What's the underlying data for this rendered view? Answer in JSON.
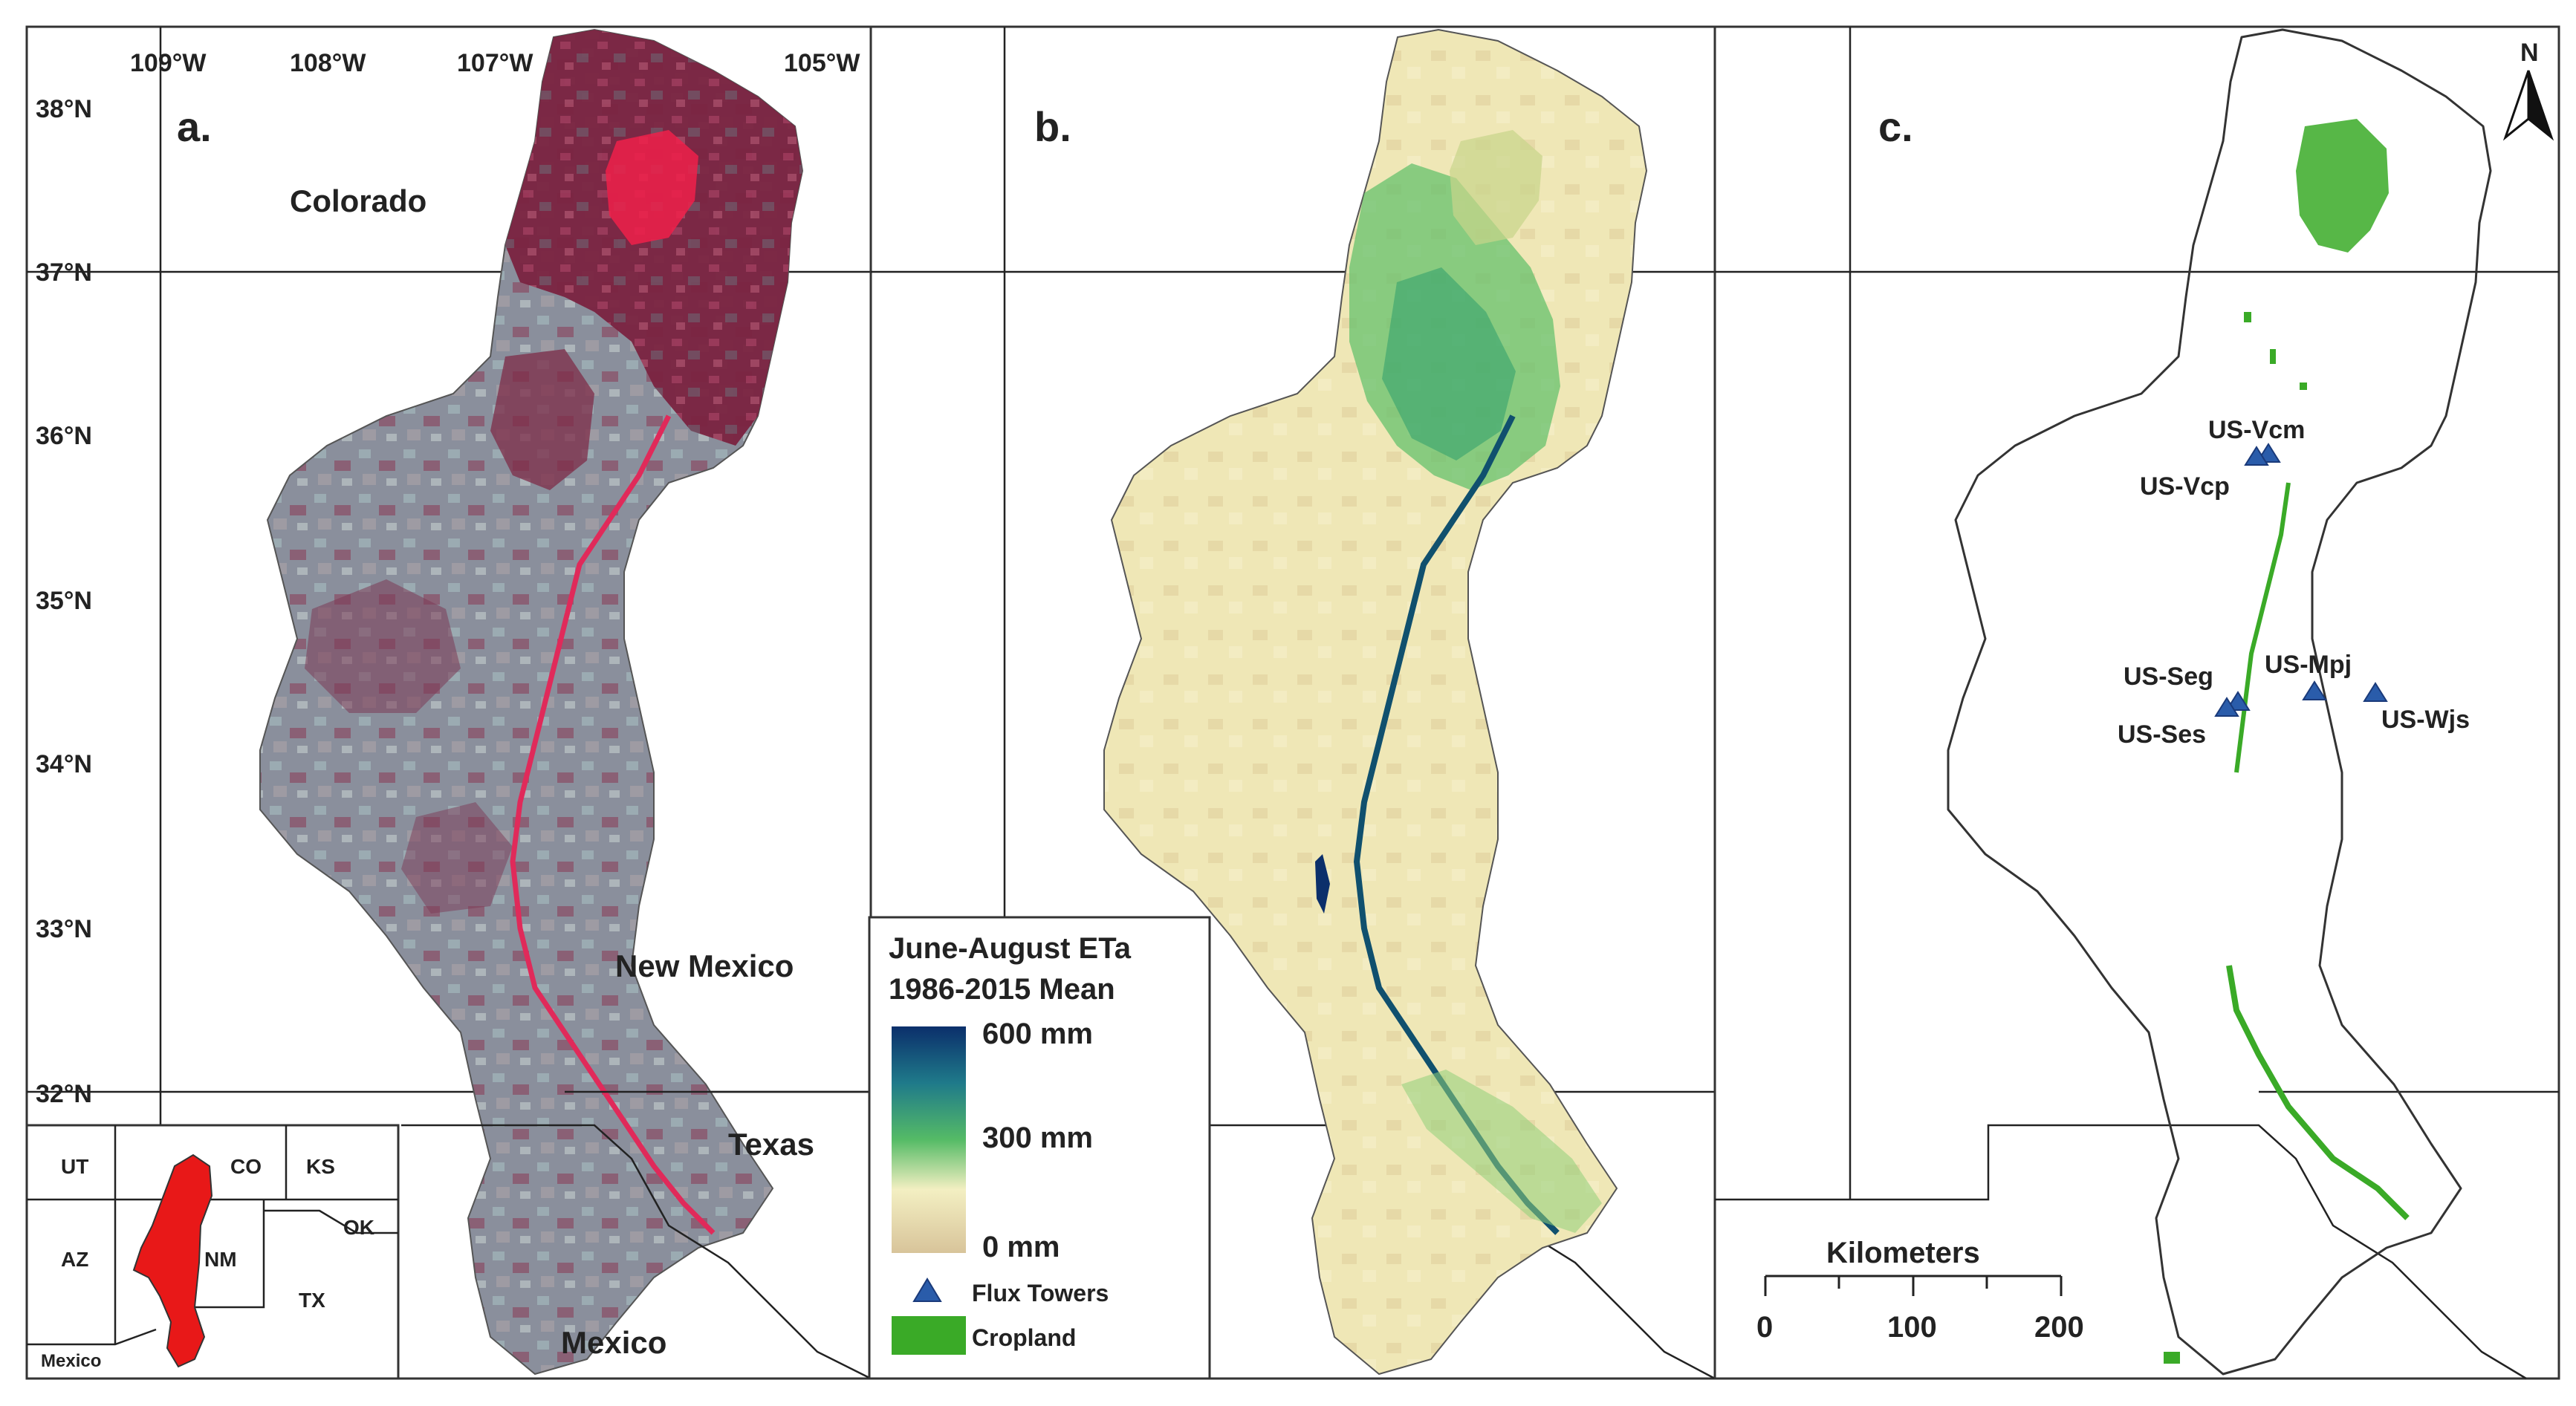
{
  "panels": {
    "a": {
      "label": "a.",
      "lon_ticks": [
        "109°W",
        "108°W",
        "107°W",
        "105°W"
      ],
      "lat_ticks": [
        "38°N",
        "37°N",
        "36°N",
        "35°N",
        "34°N",
        "33°N",
        "32°N"
      ],
      "region_labels": {
        "colorado": "Colorado",
        "new_mexico": "New Mexico",
        "texas": "Texas",
        "mexico": "Mexico"
      },
      "inset": {
        "states": [
          "UT",
          "CO",
          "KS",
          "AZ",
          "NM",
          "OK",
          "TX",
          "Mexico"
        ]
      }
    },
    "b": {
      "label": "b.",
      "legend": {
        "title_line1": "June-August ETa",
        "title_line2": "1986-2015 Mean",
        "ramp_max": "600 mm",
        "ramp_mid": "300 mm",
        "ramp_min": "0 mm",
        "flux_towers": "Flux Towers",
        "cropland": "Cropland"
      }
    },
    "c": {
      "label": "c.",
      "north": "N",
      "towers": [
        "US-Vcm",
        "US-Vcp",
        "US-Seg",
        "US-Ses",
        "US-Mpj",
        "US-Wjs"
      ],
      "scale_bar": {
        "title": "Kilometers",
        "ticks": [
          "0",
          "100",
          "200"
        ]
      }
    }
  },
  "colors": {
    "false_color_red": "#8c2a45",
    "false_color_gray": "#8e9aa6",
    "eta_low": "#d8c69a",
    "eta_mid": "#f2eebf",
    "eta_green": "#4fb75a",
    "eta_high": "#0b2f6b",
    "cropland": "#3aaa27",
    "tower": "#2a5caa",
    "inset_basin": "#e81818"
  }
}
